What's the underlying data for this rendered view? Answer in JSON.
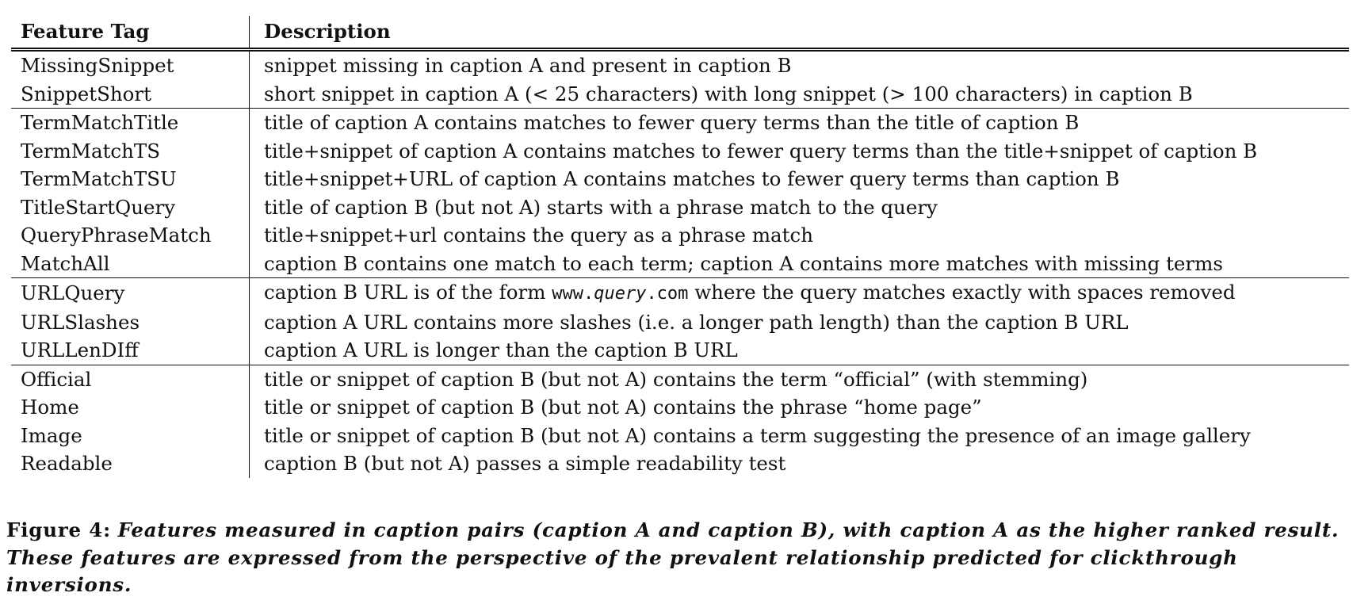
{
  "table": {
    "headers": [
      "Feature Tag",
      "Description"
    ],
    "groups": [
      [
        {
          "tag": "MissingSnippet",
          "desc": "snippet missing in caption A and present in caption B"
        },
        {
          "tag": "SnippetShort",
          "desc": "short snippet in caption A (< 25 characters) with long snippet (> 100 characters) in caption B"
        }
      ],
      [
        {
          "tag": "TermMatchTitle",
          "desc": "title of caption A contains matches to fewer query terms than the title of caption B"
        },
        {
          "tag": "TermMatchTS",
          "desc": "title+snippet of caption A contains matches to fewer query terms than the title+snippet of caption B"
        },
        {
          "tag": "TermMatchTSU",
          "desc": "title+snippet+URL of caption A contains matches to fewer query terms than caption B"
        },
        {
          "tag": "TitleStartQuery",
          "desc": "title of caption B (but not A) starts with a phrase match to the query"
        },
        {
          "tag": "QueryPhraseMatch",
          "desc": "title+snippet+url contains the query as a phrase match"
        },
        {
          "tag": "MatchAll",
          "desc": "caption B contains one match to each term; caption A contains more matches with missing terms"
        }
      ],
      [
        {
          "tag": "URLQuery",
          "desc_parts": [
            "caption B URL is of the form ",
            "www.",
            "query",
            ".com",
            " where the query matches exactly with spaces removed"
          ]
        },
        {
          "tag": "URLSlashes",
          "desc": "caption A URL contains more slashes (i.e. a longer path length) than the caption B URL"
        },
        {
          "tag": "URLLenDIff",
          "desc": "caption A URL is longer than the caption B URL"
        }
      ],
      [
        {
          "tag": "Official",
          "desc": "title or snippet of caption B (but not A) contains the term “official” (with stemming)"
        },
        {
          "tag": "Home",
          "desc": "title or snippet of caption B (but not A) contains the phrase “home page”"
        },
        {
          "tag": "Image",
          "desc": "title or snippet of caption B (but not A) contains a term suggesting the presence of an image gallery"
        },
        {
          "tag": "Readable",
          "desc": "caption B (but not A) passes a simple readability test"
        }
      ]
    ]
  },
  "caption": {
    "label": "Figure 4:",
    "text": "Features measured in caption pairs (caption A and caption B), with caption A as the higher ranked result. These features are expressed from the perspective of the prevalent relationship predicted for clickthrough inversions."
  }
}
